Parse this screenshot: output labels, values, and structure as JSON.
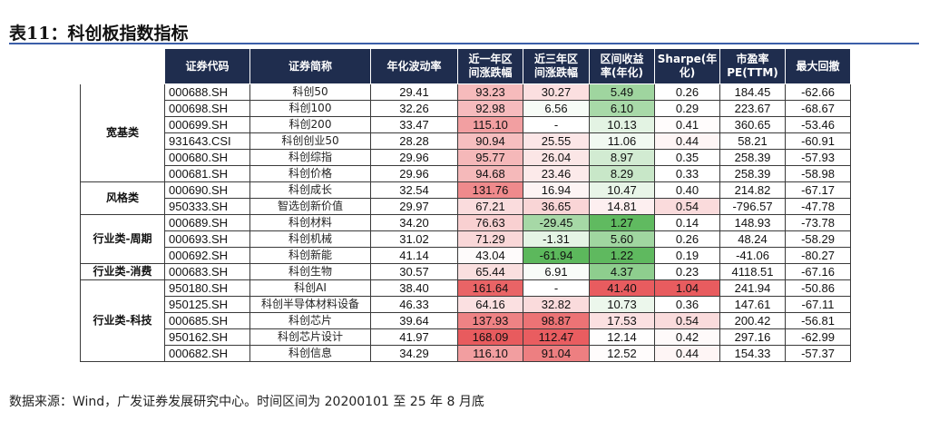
{
  "title": "表11：科创板指数指标",
  "headers": [
    "",
    "证券代码",
    "证券简称",
    "年化波动率",
    "近一年区间涨跌幅",
    "近三年区间涨跌幅",
    "区间收益率(年化)",
    "Sharpe(年化)",
    "市盈率PE(TTM)",
    "最大回撤"
  ],
  "header_lines": [
    [
      ""
    ],
    [
      "证券代码"
    ],
    [
      "证券简称"
    ],
    [
      "年化波动率"
    ],
    [
      "近一年区",
      "间涨跌幅"
    ],
    [
      "近三年区",
      "间涨跌幅"
    ],
    [
      "区间收益",
      "率(年化)"
    ],
    [
      "Sharpe(年",
      "化)"
    ],
    [
      "市盈率",
      "PE(TTM)"
    ],
    [
      "最大回撤"
    ]
  ],
  "groups": [
    {
      "category": "宽基类",
      "rows": [
        {
          "code": "000688.SH",
          "name": "科创50",
          "vol": "29.41",
          "y1": "93.23",
          "y3": "30.27",
          "ret": "5.49",
          "sharpe": "0.26",
          "pe": "184.45",
          "mdd": "-62.66"
        },
        {
          "code": "000698.SH",
          "name": "科创100",
          "vol": "32.26",
          "y1": "92.98",
          "y3": "6.56",
          "ret": "6.10",
          "sharpe": "0.29",
          "pe": "223.67",
          "mdd": "-68.67"
        },
        {
          "code": "000699.SH",
          "name": "科创200",
          "vol": "33.47",
          "y1": "115.10",
          "y3": "-",
          "ret": "10.13",
          "sharpe": "0.41",
          "pe": "360.65",
          "mdd": "-53.46"
        },
        {
          "code": "931643.CSI",
          "name": "科创创业50",
          "vol": "28.28",
          "y1": "90.94",
          "y3": "25.55",
          "ret": "11.06",
          "sharpe": "0.44",
          "pe": "58.21",
          "mdd": "-60.91"
        },
        {
          "code": "000680.SH",
          "name": "科创综指",
          "vol": "29.96",
          "y1": "95.77",
          "y3": "26.04",
          "ret": "8.97",
          "sharpe": "0.35",
          "pe": "258.39",
          "mdd": "-57.93"
        },
        {
          "code": "000681.SH",
          "name": "科创价格",
          "vol": "29.96",
          "y1": "94.68",
          "y3": "23.46",
          "ret": "8.29",
          "sharpe": "0.33",
          "pe": "258.39",
          "mdd": "-58.98"
        }
      ]
    },
    {
      "category": "风格类",
      "rows": [
        {
          "code": "000690.SH",
          "name": "科创成长",
          "vol": "32.54",
          "y1": "131.76",
          "y3": "16.94",
          "ret": "10.47",
          "sharpe": "0.40",
          "pe": "214.82",
          "mdd": "-67.17"
        },
        {
          "code": "950333.SH",
          "name": "智选创新价值",
          "vol": "29.97",
          "y1": "67.21",
          "y3": "36.65",
          "ret": "14.81",
          "sharpe": "0.54",
          "pe": "-796.57",
          "mdd": "-47.78"
        }
      ]
    },
    {
      "category": "行业类-周期",
      "rows": [
        {
          "code": "000689.SH",
          "name": "科创材料",
          "vol": "34.20",
          "y1": "76.63",
          "y3": "-29.45",
          "ret": "1.27",
          "sharpe": "0.14",
          "pe": "148.93",
          "mdd": "-73.78"
        },
        {
          "code": "000693.SH",
          "name": "科创机械",
          "vol": "31.02",
          "y1": "71.29",
          "y3": "-1.31",
          "ret": "5.60",
          "sharpe": "0.26",
          "pe": "48.24",
          "mdd": "-58.29"
        },
        {
          "code": "000692.SH",
          "name": "科创新能",
          "vol": "41.14",
          "y1": "43.04",
          "y3": "-61.94",
          "ret": "1.22",
          "sharpe": "0.19",
          "pe": "-41.06",
          "mdd": "-80.27"
        }
      ]
    },
    {
      "category": "行业类-消费",
      "rows": [
        {
          "code": "000683.SH",
          "name": "科创生物",
          "vol": "30.57",
          "y1": "65.44",
          "y3": "6.91",
          "ret": "4.37",
          "sharpe": "0.23",
          "pe": "4118.51",
          "mdd": "-67.16"
        }
      ]
    },
    {
      "category": "行业类-科技",
      "rows": [
        {
          "code": "950180.SH",
          "name": "科创AI",
          "vol": "38.40",
          "y1": "161.64",
          "y3": "-",
          "ret": "41.40",
          "sharpe": "1.04",
          "pe": "241.94",
          "mdd": "-50.86"
        },
        {
          "code": "950125.SH",
          "name": "科创半导体材料设备",
          "vol": "46.33",
          "y1": "64.16",
          "y3": "32.82",
          "ret": "10.73",
          "sharpe": "0.36",
          "pe": "147.61",
          "mdd": "-67.11"
        },
        {
          "code": "000685.SH",
          "name": "科创芯片",
          "vol": "39.64",
          "y1": "137.93",
          "y3": "98.87",
          "ret": "17.53",
          "sharpe": "0.54",
          "pe": "200.42",
          "mdd": "-56.81"
        },
        {
          "code": "950162.SH",
          "name": "科创芯片设计",
          "vol": "41.97",
          "y1": "168.09",
          "y3": "112.47",
          "ret": "12.14",
          "sharpe": "0.42",
          "pe": "297.16",
          "mdd": "-62.99"
        },
        {
          "code": "000682.SH",
          "name": "科创信息",
          "vol": "34.29",
          "y1": "116.10",
          "y3": "91.04",
          "ret": "12.52",
          "sharpe": "0.44",
          "pe": "154.33",
          "mdd": "-57.37"
        }
      ]
    }
  ],
  "colors": {
    "header_bg": "#1f2d4e",
    "title_rule": "#3b5ea8",
    "heat_red": "#e8595c",
    "heat_green": "#5cb85c"
  },
  "footer": "数据来源：Wind，广发证券发展研究中心。时间区间为 20200101 至 25 年 8 月底"
}
